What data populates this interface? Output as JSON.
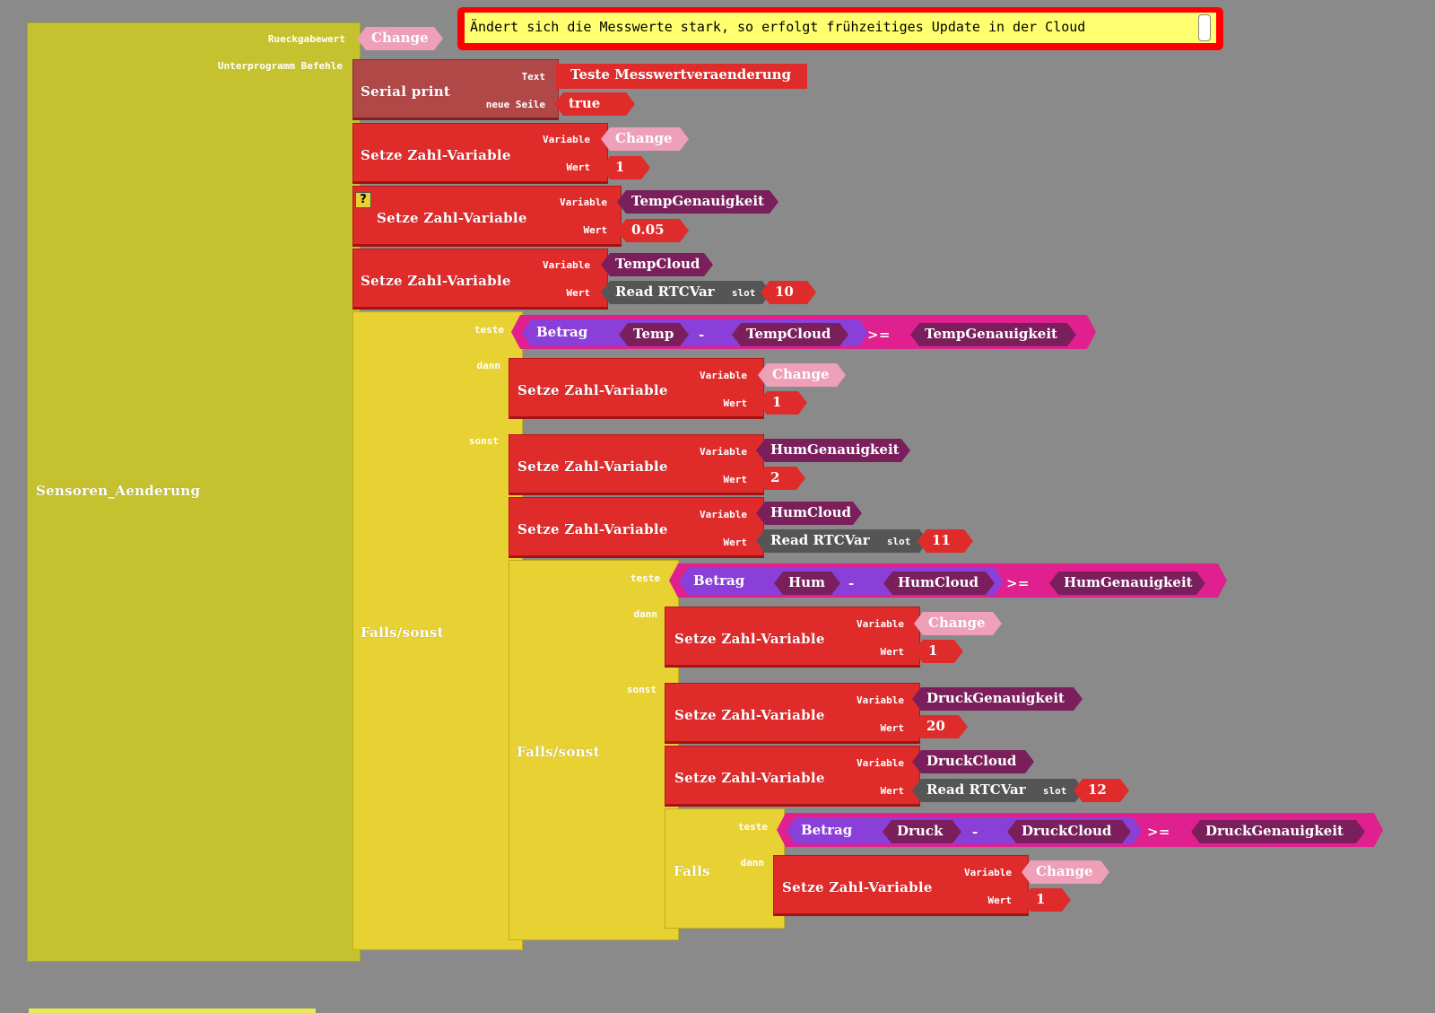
{
  "comment": {
    "text": "Ändert sich die Messwerte stark,  so erfolgt frühzeitiges Update in der Cloud"
  },
  "sub": {
    "name": "Sensoren_Aenderung",
    "return_label": "Rueckgabewert",
    "return_var": "Change",
    "commands_label": "Unterprogramm Befehle"
  },
  "serial": {
    "title": "Serial print",
    "text_label": "Text",
    "newline_label": "neue Seile",
    "text_value": "Teste Messwertveraenderung",
    "newline_value": "true"
  },
  "labels": {
    "set_var": "Setze Zahl-Variable",
    "variable": "Variable",
    "value": "Wert",
    "if_else": "Falls/sonst",
    "if_only": "Falls",
    "test": "teste",
    "then": "dann",
    "else": "sonst",
    "abs": "Betrag",
    "minus": "-",
    "gte": ">=",
    "read_rtc": "Read RTCVar",
    "slot": "slot",
    "help": "?"
  },
  "blocks": {
    "s1": {
      "var": "Change",
      "val": "1"
    },
    "s2": {
      "var": "TempGenauigkeit",
      "val": "0.05"
    },
    "s3": {
      "var": "TempCloud",
      "slot": "10"
    },
    "if1": {
      "a": "Temp",
      "b": "TempCloud",
      "c": "TempGenauigkeit"
    },
    "s4": {
      "var": "Change",
      "val": "1"
    },
    "s5": {
      "var": "HumGenauigkeit",
      "val": "2"
    },
    "s6": {
      "var": "HumCloud",
      "slot": "11"
    },
    "if2": {
      "a": "Hum",
      "b": "HumCloud",
      "c": "HumGenauigkeit"
    },
    "s7": {
      "var": "Change",
      "val": "1"
    },
    "s8": {
      "var": "DruckGenauigkeit",
      "val": "20"
    },
    "s9": {
      "var": "DruckCloud",
      "slot": "12"
    },
    "if3": {
      "a": "Druck",
      "b": "DruckCloud",
      "c": "DruckGenauigkeit"
    },
    "s10": {
      "var": "Change",
      "val": "1"
    }
  },
  "colors": {
    "background": "#8a8a8a",
    "subroutine": "#c6c22f",
    "if_block": "#e8d132",
    "set_block": "#e02b2b",
    "variable_pill": "#7b1f5c",
    "change_pill": "#eea0b8",
    "comment_bg": "#ffff70",
    "comment_border": "#ff0000"
  }
}
